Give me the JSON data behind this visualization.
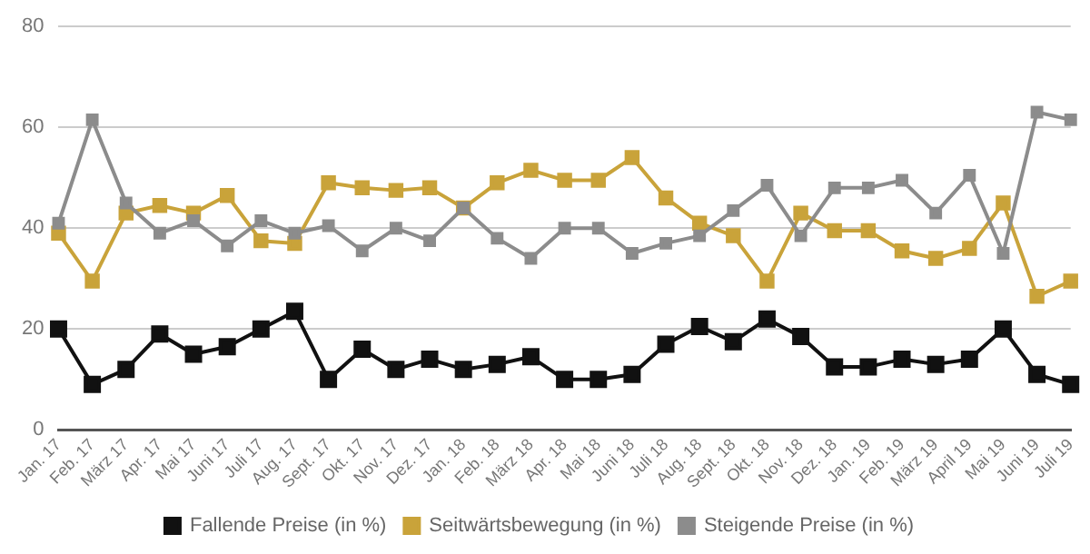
{
  "chart_data": {
    "type": "line",
    "categories": [
      "Jan. 17",
      "Feb. 17",
      "März 17",
      "Apr. 17",
      "Mai 17",
      "Juni 17",
      "Juli 17",
      "Aug. 17",
      "Sept. 17",
      "Okt. 17",
      "Nov. 17",
      "Dez. 17",
      "Jan. 18",
      "Feb. 18",
      "März 18",
      "Apr. 18",
      "Mai 18",
      "Juni 18",
      "Juli 18",
      "Aug. 18",
      "Sept. 18",
      "Okt. 18",
      "Nov. 18",
      "Dez. 18",
      "Jan. 19",
      "Feb. 19",
      "März 19",
      "April 19",
      "Mai 19",
      "Juni 19",
      "Juli 19"
    ],
    "series": [
      {
        "name": "Fallende Preise (in %)",
        "color": "#111111",
        "values": [
          20,
          9,
          12,
          19,
          15,
          16.5,
          20,
          23.5,
          10,
          16,
          12,
          14,
          12,
          13,
          14.5,
          10,
          10,
          11,
          17,
          20.5,
          17.5,
          22,
          18.5,
          12.5,
          12.5,
          14,
          13,
          14,
          20,
          11,
          9
        ]
      },
      {
        "name": "Seitwärtsbewegung (in %)",
        "color": "#c9a33a",
        "values": [
          39,
          29.5,
          43,
          44.5,
          43,
          46.5,
          37.5,
          37,
          49,
          48,
          47.5,
          48,
          44,
          49,
          51.5,
          49.5,
          49.5,
          54,
          46,
          41,
          38.5,
          29.5,
          43,
          39.5,
          39.5,
          35.5,
          34,
          36,
          45,
          26.5,
          29.5
        ]
      },
      {
        "name": "Steigende Preise (in %)",
        "color": "#8c8c8c",
        "values": [
          41,
          61.5,
          45,
          39,
          41.5,
          36.5,
          41.5,
          39,
          40.5,
          35.5,
          40,
          37.5,
          44,
          38,
          34,
          40,
          40,
          35,
          37,
          38.5,
          43.5,
          48.5,
          38.5,
          48,
          48,
          49.5,
          43,
          50.5,
          35,
          63,
          61.5
        ]
      }
    ],
    "ylim": [
      0,
      80
    ],
    "yticks": [
      0,
      20,
      40,
      60,
      80
    ],
    "grid": "y",
    "legend": "bottom",
    "marker": "square",
    "line_style": "solid"
  }
}
